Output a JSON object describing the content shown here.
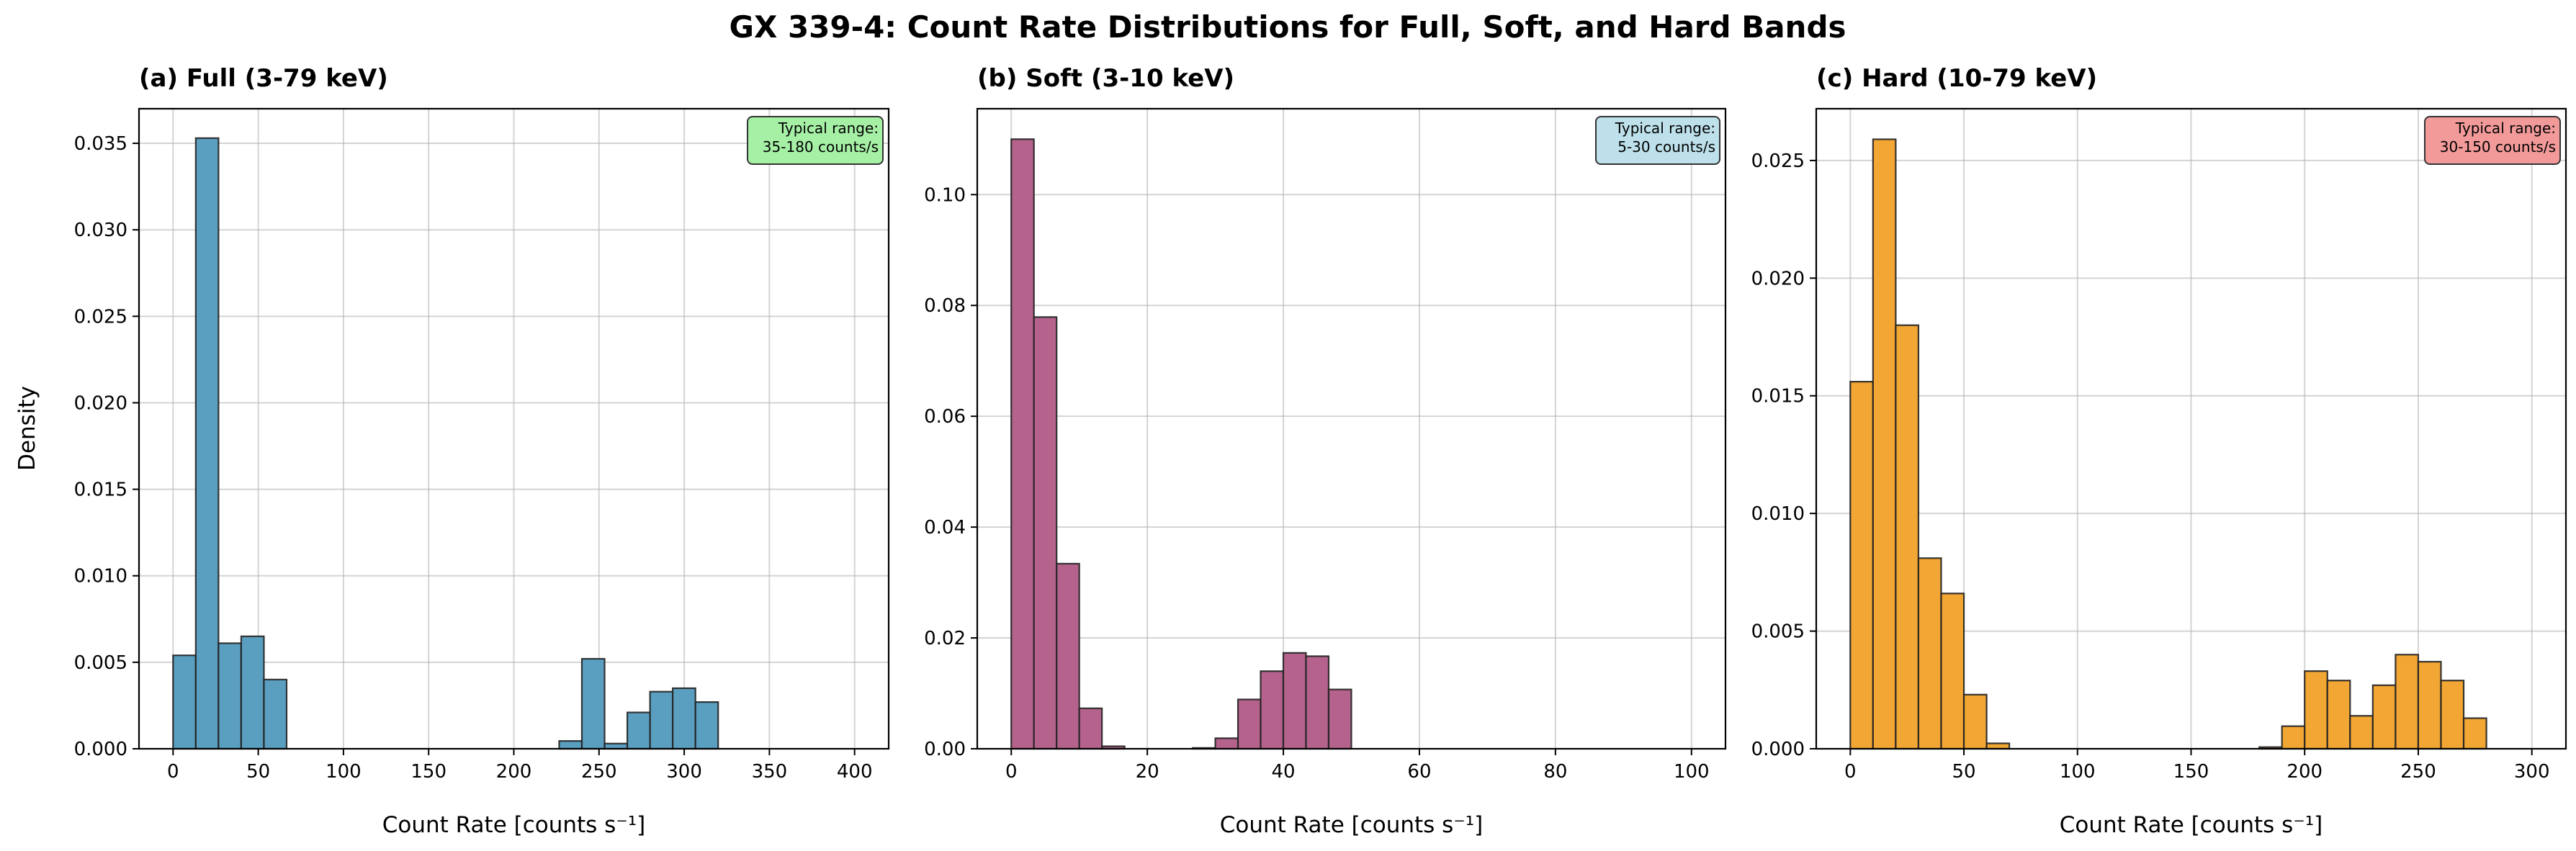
{
  "figure": {
    "title": "GX 339-4: Count Rate Distributions for Full, Soft, and Hard Bands",
    "ylabel": "Density"
  },
  "chart_data": [
    {
      "type": "bar",
      "title": "(a) Full (3-79 keV)",
      "xlabel": "Count Rate [counts s⁻¹]",
      "ylabel": "Density",
      "color": "#5a9fc0",
      "bin_start": 0,
      "bin_width": 13.33,
      "values": [
        0.0054,
        0.0353,
        0.0061,
        0.0065,
        0.004,
        0,
        0,
        0,
        0,
        0,
        0,
        0,
        0,
        0,
        0,
        0,
        0,
        0.00045,
        0.0052,
        0.0003,
        0.0021,
        0.0033,
        0.0035,
        0.0027
      ],
      "xlim": [
        -20,
        420
      ],
      "ylim": [
        0,
        0.037
      ],
      "xticks": [
        0,
        50,
        100,
        150,
        200,
        250,
        300,
        350,
        400
      ],
      "xtick_labels": [
        "0",
        "50",
        "100",
        "150",
        "200",
        "250",
        "300",
        "350",
        "400"
      ],
      "yticks": [
        0,
        0.005,
        0.01,
        0.015,
        0.02,
        0.025,
        0.03,
        0.035
      ],
      "ytick_labels": [
        "0.000",
        "0.005",
        "0.010",
        "0.015",
        "0.020",
        "0.025",
        "0.030",
        "0.035"
      ],
      "grid": true,
      "annotation": {
        "line1": "Typical range:",
        "line2": "35-180 counts/s",
        "color": "#a6f0a6",
        "placement": "top-right"
      }
    },
    {
      "type": "bar",
      "title": "(b) Soft (3-10 keV)",
      "xlabel": "Count Rate [counts s⁻¹]",
      "color": "#b5638c",
      "bin_start": 0,
      "bin_width": 3.333,
      "values": [
        0.11,
        0.0779,
        0.0334,
        0.0073,
        0.00045,
        0,
        0,
        0,
        0.00015,
        0.0019,
        0.0089,
        0.014,
        0.0173,
        0.0167,
        0.0107
      ],
      "xlim": [
        -5,
        105
      ],
      "ylim": [
        0,
        0.1155
      ],
      "xticks": [
        0,
        20,
        40,
        60,
        80,
        100
      ],
      "xtick_labels": [
        "0",
        "20",
        "40",
        "60",
        "80",
        "100"
      ],
      "yticks": [
        0,
        0.02,
        0.04,
        0.06,
        0.08,
        0.1
      ],
      "ytick_labels": [
        "0.00",
        "0.02",
        "0.04",
        "0.06",
        "0.08",
        "0.10"
      ],
      "grid": true,
      "annotation": {
        "line1": "Typical range:",
        "line2": "5-30 counts/s",
        "color": "#bde0ea",
        "placement": "top-right"
      }
    },
    {
      "type": "bar",
      "title": "(c) Hard (10-79 keV)",
      "xlabel": "Count Rate [counts s⁻¹]",
      "color": "#f2a633",
      "bin_start": 0,
      "bin_width": 10,
      "values": [
        0.0156,
        0.0259,
        0.018,
        0.0081,
        0.0066,
        0.0023,
        0.00023,
        0,
        0,
        0,
        0,
        0,
        0,
        0,
        0,
        0,
        0,
        0,
        7e-05,
        0.00096,
        0.0033,
        0.0029,
        0.0014,
        0.0027,
        0.004,
        0.0037,
        0.0029,
        0.0013
      ],
      "xlim": [
        -15,
        315
      ],
      "ylim": [
        0,
        0.0272
      ],
      "xticks": [
        0,
        50,
        100,
        150,
        200,
        250,
        300
      ],
      "xtick_labels": [
        "0",
        "50",
        "100",
        "150",
        "200",
        "250",
        "300"
      ],
      "yticks": [
        0,
        0.005,
        0.01,
        0.015,
        0.02,
        0.025
      ],
      "ytick_labels": [
        "0.000",
        "0.005",
        "0.010",
        "0.015",
        "0.020",
        "0.025"
      ],
      "grid": true,
      "annotation": {
        "line1": "Typical range:",
        "line2": "30-150 counts/s",
        "color": "#f29a9a",
        "placement": "top-right"
      }
    }
  ]
}
